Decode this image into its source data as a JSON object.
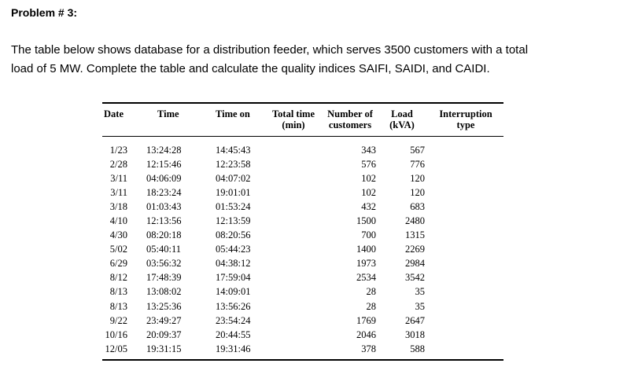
{
  "problem": {
    "title": "Problem # 3:"
  },
  "intro": {
    "line1": "The table below shows database for a distribution feeder, which serves 3500 customers with a total",
    "line2": "load of 5 MW. Complete the table and calculate the quality indices SAIFI, SAIDI, and CAIDI."
  },
  "table": {
    "headers": {
      "date": "Date",
      "time": "Time",
      "time_on": "Time on",
      "total_time_1": "Total time",
      "total_time_2": "(min)",
      "customers_1": "Number of",
      "customers_2": "customers",
      "load_1": "Load",
      "load_2": "(kVA)",
      "type_1": "Interruption",
      "type_2": "type"
    },
    "rows": [
      {
        "date": "1/23",
        "time": "13:24:28",
        "time_on": "14:45:43",
        "total": "",
        "customers": "343",
        "load": "567",
        "type": ""
      },
      {
        "date": "2/28",
        "time": "12:15:46",
        "time_on": "12:23:58",
        "total": "",
        "customers": "576",
        "load": "776",
        "type": ""
      },
      {
        "date": "3/11",
        "time": "04:06:09",
        "time_on": "04:07:02",
        "total": "",
        "customers": "102",
        "load": "120",
        "type": ""
      },
      {
        "date": "3/11",
        "time": "18:23:24",
        "time_on": "19:01:01",
        "total": "",
        "customers": "102",
        "load": "120",
        "type": ""
      },
      {
        "date": "3/18",
        "time": "01:03:43",
        "time_on": "01:53:24",
        "total": "",
        "customers": "432",
        "load": "683",
        "type": ""
      },
      {
        "date": "4/10",
        "time": "12:13:56",
        "time_on": "12:13:59",
        "total": "",
        "customers": "1500",
        "load": "2480",
        "type": ""
      },
      {
        "date": "4/30",
        "time": "08:20:18",
        "time_on": "08:20:56",
        "total": "",
        "customers": "700",
        "load": "1315",
        "type": ""
      },
      {
        "date": "5/02",
        "time": "05:40:11",
        "time_on": "05:44:23",
        "total": "",
        "customers": "1400",
        "load": "2269",
        "type": ""
      },
      {
        "date": "6/29",
        "time": "03:56:32",
        "time_on": "04:38:12",
        "total": "",
        "customers": "1973",
        "load": "2984",
        "type": ""
      },
      {
        "date": "8/12",
        "time": "17:48:39",
        "time_on": "17:59:04",
        "total": "",
        "customers": "2534",
        "load": "3542",
        "type": ""
      },
      {
        "date": "8/13",
        "time": "13:08:02",
        "time_on": "14:09:01",
        "total": "",
        "customers": "28",
        "load": "35",
        "type": ""
      },
      {
        "date": "8/13",
        "time": "13:25:36",
        "time_on": "13:56:26",
        "total": "",
        "customers": "28",
        "load": "35",
        "type": ""
      },
      {
        "date": "9/22",
        "time": "23:49:27",
        "time_on": "23:54:24",
        "total": "",
        "customers": "1769",
        "load": "2647",
        "type": ""
      },
      {
        "date": "10/16",
        "time": "20:09:37",
        "time_on": "20:44:55",
        "total": "",
        "customers": "2046",
        "load": "3018",
        "type": ""
      },
      {
        "date": "12/05",
        "time": "19:31:15",
        "time_on": "19:31:46",
        "total": "",
        "customers": "378",
        "load": "588",
        "type": ""
      }
    ]
  }
}
